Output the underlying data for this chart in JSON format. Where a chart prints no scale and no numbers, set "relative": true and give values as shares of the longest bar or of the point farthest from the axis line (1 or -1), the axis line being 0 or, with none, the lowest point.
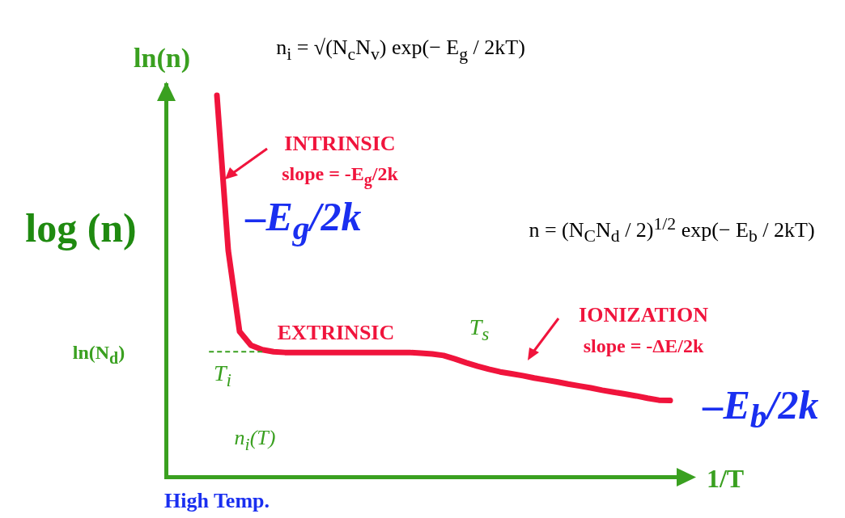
{
  "chart_data": {
    "type": "line",
    "relative": true,
    "ylabel": "ln(n)",
    "xlabel": "1/T",
    "categories": [
      null,
      null,
      null,
      null,
      null,
      null,
      null,
      null,
      null,
      null,
      null,
      null,
      null,
      null,
      null,
      null,
      null,
      null,
      null,
      null,
      null,
      null,
      null,
      null,
      null,
      null,
      null,
      null,
      null,
      null,
      null,
      null,
      null,
      null,
      null,
      null,
      null,
      null,
      null,
      null,
      null
    ],
    "series": [
      {
        "color": "#f0143c",
        "values": [
          1.0,
          0.593,
          0.381,
          0.345,
          0.333,
          0.328,
          0.326,
          0.326,
          0.326,
          0.326,
          0.326,
          0.326,
          0.326,
          0.326,
          0.326,
          0.326,
          0.326,
          0.326,
          0.324,
          0.322,
          0.318,
          0.309,
          0.299,
          0.29,
          0.282,
          0.275,
          0.27,
          0.265,
          0.259,
          0.254,
          0.249,
          0.243,
          0.238,
          0.233,
          0.227,
          0.222,
          0.217,
          0.212,
          0.206,
          0.201,
          0.2
        ]
      }
    ],
    "ref_lines": [
      {
        "axis": "y",
        "value": 0.328,
        "label": "ln(N$_{d}$)",
        "color": "#3aa020",
        "line_style": "dashed"
      }
    ],
    "annotations": [
      "n$_{i}$ = √(N$_{c}$N$_{v}$) exp(− E$_{g}$ / 2kT)",
      "n = (N$_{C}$N$_{d}$ / 2)$^{1/2}$ exp(− E$_{b}$ / 2kT)",
      "INTRINSIC",
      "slope = -E$_{g}$/2k",
      "–E$_{g}$/2k",
      "EXTRINSIC",
      "T$_{s}$",
      "IONIZATION",
      "slope = -ΔE/2k",
      "–E$_{b}$/2k",
      "log (n)",
      "T$_{i}$",
      "n$_{i}$(T)",
      "High Temp."
    ],
    "grid": false,
    "legend": false,
    "line_style": "solid",
    "marker": "none"
  }
}
